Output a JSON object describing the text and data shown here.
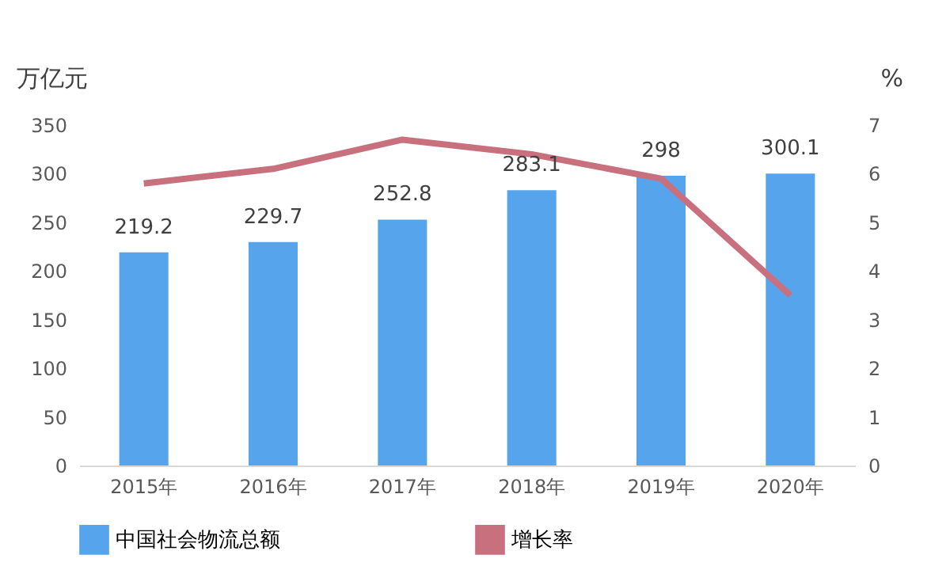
{
  "chart_data": {
    "type": "bar",
    "ylabel": "万亿元",
    "y2label": "%",
    "categories": [
      "2015年",
      "2016年",
      "2017年",
      "2018年",
      "2019年",
      "2020年"
    ],
    "series": [
      {
        "name": "中国社会物流总额",
        "type": "bar",
        "color": "#56a5ec",
        "values": [
          219.2,
          229.7,
          252.8,
          283.1,
          298,
          300.1
        ],
        "value_labels": [
          "219.2",
          "229.7",
          "252.8",
          "283.1",
          "298",
          "300.1"
        ]
      },
      {
        "name": "增长率",
        "type": "line",
        "axis": "y2",
        "color": "#c9707f",
        "values": [
          5.8,
          6.1,
          6.7,
          6.4,
          5.9,
          3.5
        ]
      }
    ],
    "ylim": [
      0,
      350
    ],
    "yticks": [
      0,
      50,
      100,
      150,
      200,
      250,
      300,
      350
    ],
    "y2lim": [
      0,
      7
    ],
    "y2ticks": [
      0,
      1,
      2,
      3,
      4,
      5,
      6,
      7
    ],
    "grid": false,
    "legend": "bottom",
    "marker": "none",
    "line_style": "solid"
  }
}
